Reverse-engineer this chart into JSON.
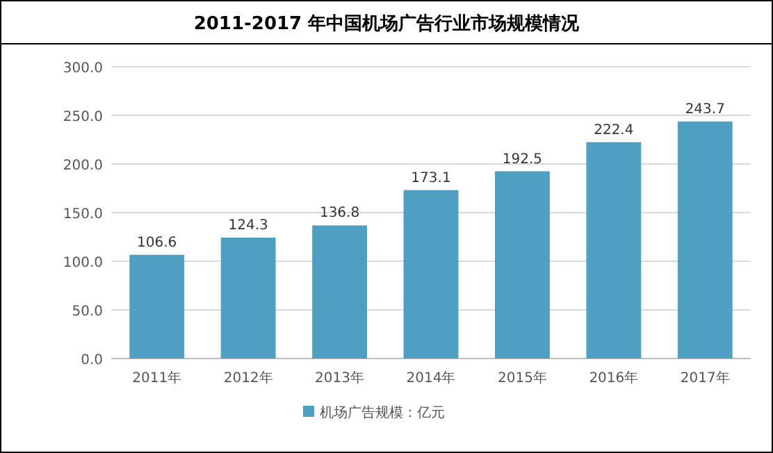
{
  "chart_data": {
    "type": "bar",
    "title": "2011-2017 年中国机场广告行业市场规模情况",
    "categories": [
      "2011年",
      "2012年",
      "2013年",
      "2014年",
      "2015年",
      "2016年",
      "2017年"
    ],
    "series": [
      {
        "name": "机场广告规模：亿元",
        "color": "#4f9fc2",
        "values": [
          106.6,
          124.3,
          136.8,
          173.1,
          192.5,
          222.4,
          243.7
        ]
      }
    ],
    "ylim": [
      0,
      300
    ],
    "yticks": [
      {
        "value": 0,
        "label": "0.0"
      },
      {
        "value": 50,
        "label": "50.0"
      },
      {
        "value": 100,
        "label": "100.0"
      },
      {
        "value": 150,
        "label": "150.0"
      },
      {
        "value": 200,
        "label": "200.0"
      },
      {
        "value": 250,
        "label": "250.0"
      },
      {
        "value": 300,
        "label": "300.0"
      }
    ],
    "grid": "y",
    "legend": "bottom",
    "data_labels": true
  }
}
